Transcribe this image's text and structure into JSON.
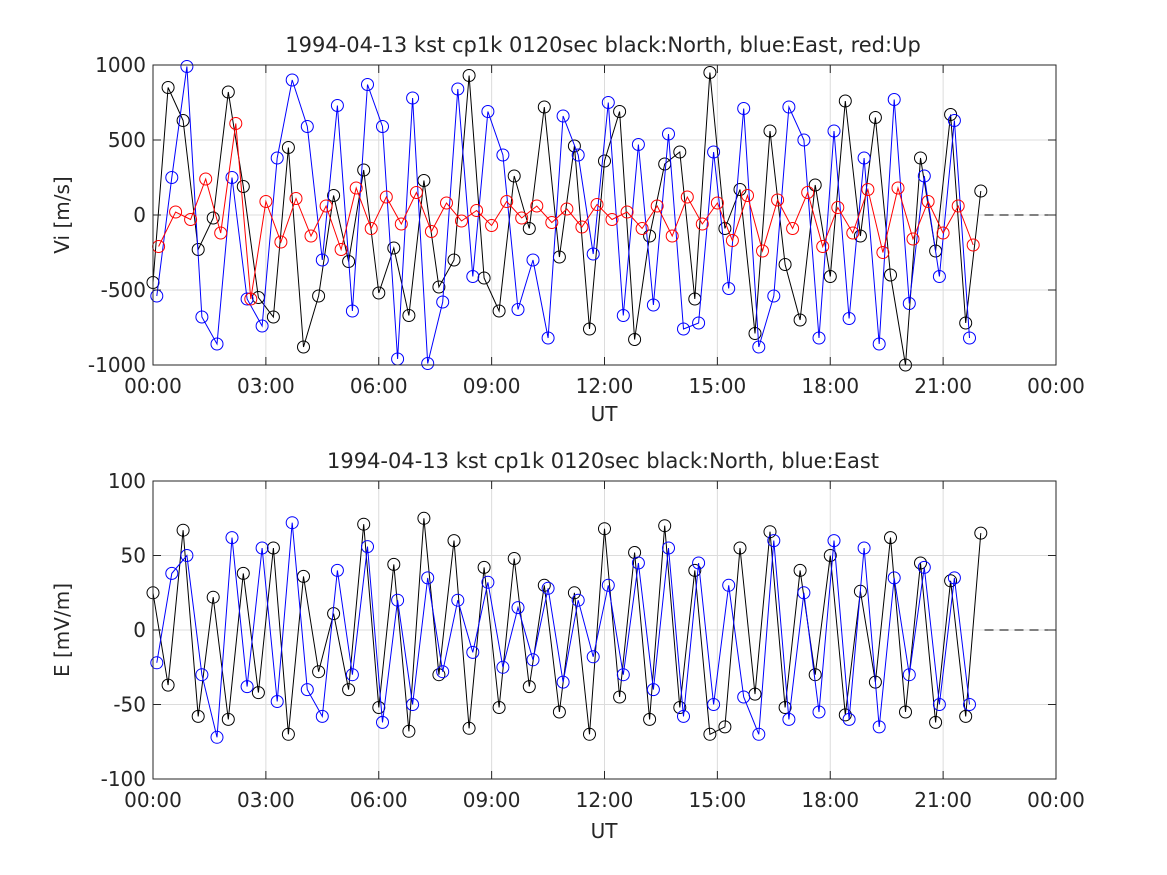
{
  "chart_data": [
    {
      "type": "scatter",
      "title": "1994-04-13 kst cp1k 0120sec black:North, blue:East, red:Up",
      "xlabel": "UT",
      "ylabel": "Vi [m/s]",
      "xlim": [
        0,
        24
      ],
      "ylim": [
        -1000,
        1000
      ],
      "x_tick_values": [
        0,
        3,
        6,
        9,
        12,
        15,
        18,
        21,
        24
      ],
      "x_tick_labels": [
        "00:00",
        "03:00",
        "06:00",
        "09:00",
        "12:00",
        "15:00",
        "18:00",
        "21:00",
        "00:00"
      ],
      "y_tick_values": [
        -1000,
        -500,
        0,
        500,
        1000
      ],
      "y_tick_labels": [
        "-1000",
        "-500",
        "0",
        "500",
        "1000"
      ],
      "grid": true,
      "reference_line": {
        "y": 0,
        "x_from": 22.1,
        "x_to": 24,
        "style": "dashed"
      },
      "series": [
        {
          "name": "North",
          "color": "#000000",
          "marker": "circle",
          "x": [
            0.0,
            0.4,
            0.8,
            1.2,
            1.6,
            2.0,
            2.4,
            2.8,
            3.2,
            3.6,
            4.0,
            4.4,
            4.8,
            5.2,
            5.6,
            6.0,
            6.4,
            6.8,
            7.2,
            7.6,
            8.0,
            8.4,
            8.8,
            9.2,
            9.6,
            10.0,
            10.4,
            10.8,
            11.2,
            11.6,
            12.0,
            12.4,
            12.8,
            13.2,
            13.6,
            14.0,
            14.4,
            14.8,
            15.2,
            15.6,
            16.0,
            16.4,
            16.8,
            17.2,
            17.6,
            18.0,
            18.4,
            18.8,
            19.2,
            19.6,
            20.0,
            20.4,
            20.8,
            21.2,
            21.6,
            22.0
          ],
          "y": [
            -450,
            850,
            630,
            -230,
            -20,
            820,
            190,
            -550,
            -680,
            450,
            -880,
            -540,
            130,
            -310,
            300,
            -520,
            -220,
            -670,
            230,
            -480,
            -300,
            930,
            -420,
            -640,
            260,
            -90,
            720,
            -280,
            460,
            -760,
            360,
            690,
            -830,
            -140,
            340,
            420,
            -560,
            950,
            -90,
            170,
            -790,
            560,
            -330,
            -700,
            200,
            -410,
            760,
            -140,
            650,
            -400,
            -1000,
            380,
            -240,
            670,
            -720,
            160
          ]
        },
        {
          "name": "East",
          "color": "#0000ff",
          "marker": "circle",
          "x": [
            0.1,
            0.5,
            0.9,
            1.3,
            1.7,
            2.1,
            2.5,
            2.9,
            3.3,
            3.7,
            4.1,
            4.5,
            4.9,
            5.3,
            5.7,
            6.1,
            6.5,
            6.9,
            7.3,
            7.7,
            8.1,
            8.5,
            8.9,
            9.3,
            9.7,
            10.1,
            10.5,
            10.9,
            11.3,
            11.7,
            12.1,
            12.5,
            12.9,
            13.3,
            13.7,
            14.1,
            14.5,
            14.9,
            15.3,
            15.7,
            16.1,
            16.5,
            16.9,
            17.3,
            17.7,
            18.1,
            18.5,
            18.9,
            19.3,
            19.7,
            20.1,
            20.5,
            20.9,
            21.3,
            21.7
          ],
          "y": [
            -540,
            250,
            990,
            -680,
            -860,
            250,
            -560,
            -740,
            380,
            900,
            590,
            -300,
            730,
            -640,
            870,
            590,
            -960,
            780,
            -990,
            -580,
            840,
            -410,
            690,
            400,
            -630,
            -300,
            -820,
            660,
            400,
            -260,
            750,
            -670,
            470,
            -600,
            540,
            -760,
            -720,
            420,
            -490,
            710,
            -880,
            -540,
            720,
            500,
            -820,
            560,
            -690,
            380,
            -860,
            770,
            -590,
            260,
            -410,
            630,
            -820
          ]
        },
        {
          "name": "Up",
          "color": "#ff0000",
          "marker": "circle",
          "x": [
            0.15,
            0.6,
            1.0,
            1.4,
            1.8,
            2.2,
            2.6,
            3.0,
            3.4,
            3.8,
            4.2,
            4.6,
            5.0,
            5.4,
            5.8,
            6.2,
            6.6,
            7.0,
            7.4,
            7.8,
            8.2,
            8.6,
            9.0,
            9.4,
            9.8,
            10.2,
            10.6,
            11.0,
            11.4,
            11.8,
            12.2,
            12.6,
            13.0,
            13.4,
            13.8,
            14.2,
            14.6,
            15.0,
            15.4,
            15.8,
            16.2,
            16.6,
            17.0,
            17.4,
            17.8,
            18.2,
            18.6,
            19.0,
            19.4,
            19.8,
            20.2,
            20.6,
            21.0,
            21.4,
            21.8
          ],
          "y": [
            -210,
            20,
            -30,
            240,
            -120,
            610,
            -560,
            90,
            -180,
            110,
            -140,
            60,
            -230,
            180,
            -90,
            120,
            -60,
            150,
            -110,
            80,
            -40,
            30,
            -70,
            90,
            -20,
            60,
            -50,
            40,
            -80,
            70,
            -30,
            20,
            -90,
            60,
            -140,
            120,
            -60,
            80,
            -170,
            130,
            -240,
            100,
            -90,
            150,
            -210,
            50,
            -120,
            170,
            -250,
            180,
            -160,
            90,
            -120,
            60,
            -200
          ]
        }
      ]
    },
    {
      "type": "scatter",
      "title": "1994-04-13 kst cp1k 0120sec black:North, blue:East",
      "xlabel": "UT",
      "ylabel": "E [mV/m]",
      "xlim": [
        0,
        24
      ],
      "ylim": [
        -100,
        100
      ],
      "x_tick_values": [
        0,
        3,
        6,
        9,
        12,
        15,
        18,
        21,
        24
      ],
      "x_tick_labels": [
        "00:00",
        "03:00",
        "06:00",
        "09:00",
        "12:00",
        "15:00",
        "18:00",
        "21:00",
        "00:00"
      ],
      "y_tick_values": [
        -100,
        -50,
        0,
        50,
        100
      ],
      "y_tick_labels": [
        "-100",
        "-50",
        "0",
        "50",
        "100"
      ],
      "grid": true,
      "reference_line": {
        "y": 0,
        "x_from": 22.1,
        "x_to": 24,
        "style": "dashed"
      },
      "series": [
        {
          "name": "North",
          "color": "#000000",
          "marker": "circle",
          "x": [
            0.0,
            0.4,
            0.8,
            1.2,
            1.6,
            2.0,
            2.4,
            2.8,
            3.2,
            3.6,
            4.0,
            4.4,
            4.8,
            5.2,
            5.6,
            6.0,
            6.4,
            6.8,
            7.2,
            7.6,
            8.0,
            8.4,
            8.8,
            9.2,
            9.6,
            10.0,
            10.4,
            10.8,
            11.2,
            11.6,
            12.0,
            12.4,
            12.8,
            13.2,
            13.6,
            14.0,
            14.4,
            14.8,
            15.2,
            15.6,
            16.0,
            16.4,
            16.8,
            17.2,
            17.6,
            18.0,
            18.4,
            18.8,
            19.2,
            19.6,
            20.0,
            20.4,
            20.8,
            21.2,
            21.6,
            22.0
          ],
          "y": [
            25,
            -37,
            67,
            -58,
            22,
            -60,
            38,
            -42,
            55,
            -70,
            36,
            -28,
            11,
            -40,
            71,
            -52,
            44,
            -68,
            75,
            -30,
            60,
            -66,
            42,
            -52,
            48,
            -38,
            30,
            -55,
            25,
            -70,
            68,
            -45,
            52,
            -60,
            70,
            -52,
            40,
            -70,
            -65,
            55,
            -43,
            66,
            -52,
            40,
            -30,
            50,
            -57,
            26,
            -35,
            62,
            -55,
            45,
            -62,
            33,
            -58,
            65
          ]
        },
        {
          "name": "East",
          "color": "#0000ff",
          "marker": "circle",
          "x": [
            0.1,
            0.5,
            0.9,
            1.3,
            1.7,
            2.1,
            2.5,
            2.9,
            3.3,
            3.7,
            4.1,
            4.5,
            4.9,
            5.3,
            5.7,
            6.1,
            6.5,
            6.9,
            7.3,
            7.7,
            8.1,
            8.5,
            8.9,
            9.3,
            9.7,
            10.1,
            10.5,
            10.9,
            11.3,
            11.7,
            12.1,
            12.5,
            12.9,
            13.3,
            13.7,
            14.1,
            14.5,
            14.9,
            15.3,
            15.7,
            16.1,
            16.5,
            16.9,
            17.3,
            17.7,
            18.1,
            18.5,
            18.9,
            19.3,
            19.7,
            20.1,
            20.5,
            20.9,
            21.3,
            21.7
          ],
          "y": [
            -22,
            38,
            50,
            -30,
            -72,
            62,
            -38,
            55,
            -48,
            72,
            -40,
            -58,
            40,
            -30,
            56,
            -62,
            20,
            -50,
            35,
            -28,
            20,
            -15,
            32,
            -25,
            15,
            -20,
            28,
            -35,
            20,
            -18,
            30,
            -30,
            45,
            -40,
            55,
            -58,
            45,
            -50,
            30,
            -45,
            -70,
            60,
            -60,
            25,
            -55,
            60,
            -60,
            55,
            -65,
            35,
            -30,
            42,
            -50,
            35,
            -50
          ]
        }
      ]
    }
  ]
}
